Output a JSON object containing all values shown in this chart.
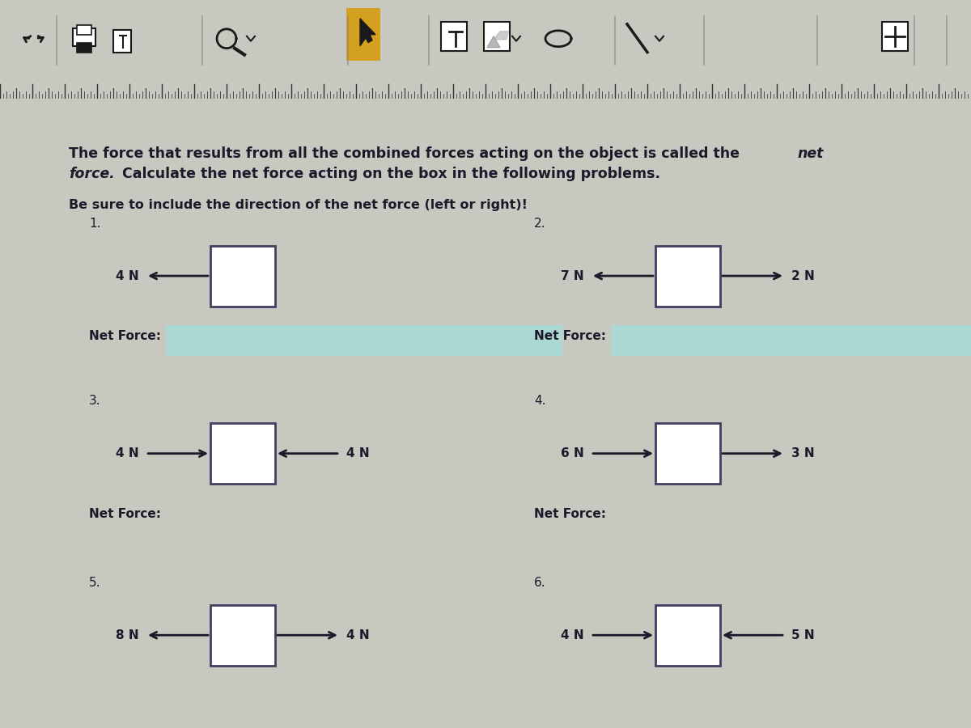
{
  "bg_color": "#c8c8c0",
  "toolbar_bg": "#c0c0b8",
  "ruler_bg": "#b0b0a8",
  "page_bg": "#d4d4cc",
  "text_color": "#1a1a2a",
  "box_edge_color": "#404060",
  "highlight_color": "#a8dcd8",
  "arrow_color": "#1a1a2a",
  "toolbar_icon_color": "#1a1a1a",
  "toolbar_highlight": "#d4a020",
  "problems": [
    {
      "number": "1.",
      "col": 0,
      "row": 0,
      "forces": [
        {
          "label": "4 N",
          "direction": "left",
          "side": "left"
        }
      ],
      "show_net": true,
      "show_highlight": true
    },
    {
      "number": "2.",
      "col": 1,
      "row": 0,
      "forces": [
        {
          "label": "7 N",
          "direction": "left",
          "side": "left"
        },
        {
          "label": "2 N",
          "direction": "right",
          "side": "right"
        }
      ],
      "show_net": true,
      "show_highlight": true
    },
    {
      "number": "3.",
      "col": 0,
      "row": 1,
      "forces": [
        {
          "label": "4 N",
          "direction": "right",
          "side": "left"
        },
        {
          "label": "4 N",
          "direction": "left",
          "side": "right"
        }
      ],
      "show_net": true,
      "show_highlight": false
    },
    {
      "number": "4.",
      "col": 1,
      "row": 1,
      "forces": [
        {
          "label": "6 N",
          "direction": "right",
          "side": "left"
        },
        {
          "label": "3 N",
          "direction": "right",
          "side": "right"
        }
      ],
      "show_net": true,
      "show_highlight": false
    },
    {
      "number": "5.",
      "col": 0,
      "row": 2,
      "forces": [
        {
          "label": "8 N",
          "direction": "left",
          "side": "left"
        },
        {
          "label": "4 N",
          "direction": "right",
          "side": "right"
        }
      ],
      "show_net": false,
      "show_highlight": false
    },
    {
      "number": "6.",
      "col": 1,
      "row": 2,
      "forces": [
        {
          "label": "4 N",
          "direction": "right",
          "side": "left"
        },
        {
          "label": "5 N",
          "direction": "left",
          "side": "right"
        }
      ],
      "show_net": false,
      "show_highlight": false
    }
  ]
}
